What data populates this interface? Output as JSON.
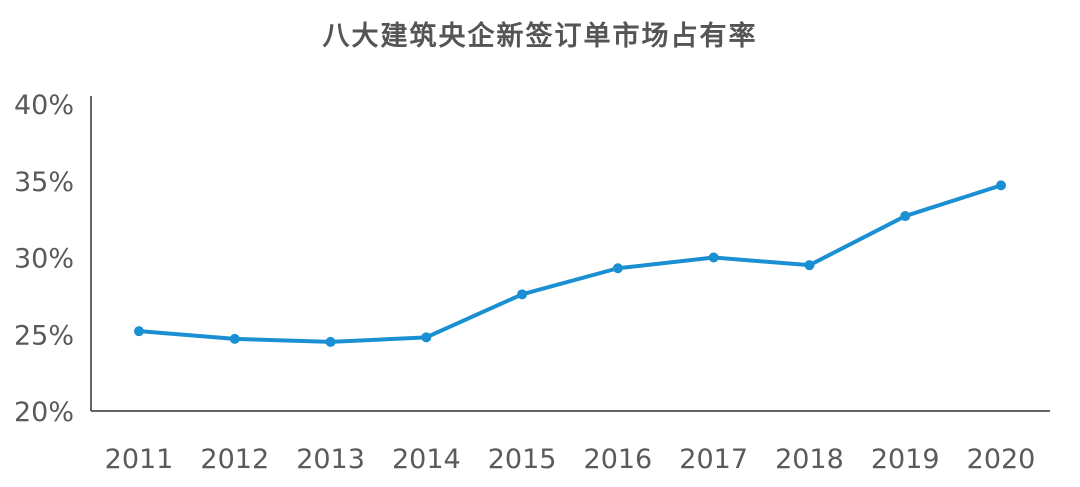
{
  "chart_data": {
    "type": "line",
    "title": "八大建筑央企新签订单市场占有率",
    "xlabel": "",
    "ylabel": "",
    "categories": [
      "2011",
      "2012",
      "2013",
      "2014",
      "2015",
      "2016",
      "2017",
      "2018",
      "2019",
      "2020"
    ],
    "series": [
      {
        "values": [
          25.2,
          24.7,
          24.5,
          24.8,
          27.6,
          29.3,
          30.0,
          29.5,
          32.7,
          34.7
        ],
        "color": "#1a90d2"
      }
    ],
    "ylim": [
      20,
      40
    ],
    "yticks": [
      20,
      25,
      30,
      35,
      40
    ],
    "ytick_labels": [
      "20%",
      "25%",
      "30%",
      "35%",
      "40%"
    ],
    "grid": false,
    "legend": "none"
  }
}
